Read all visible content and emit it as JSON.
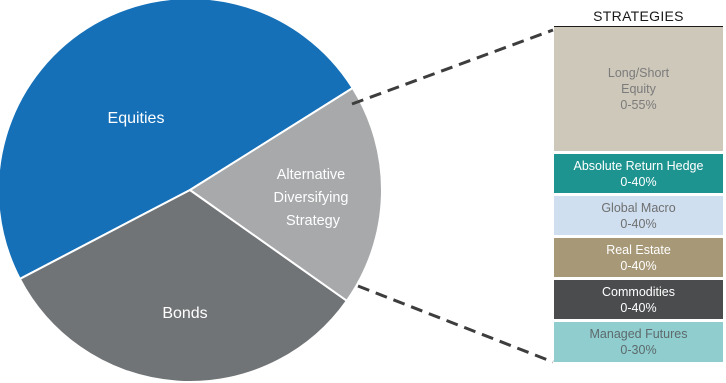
{
  "pie": {
    "slices": [
      {
        "key": "equities",
        "label": "Equities",
        "color": "#1570b8",
        "text_color": "#ffffff"
      },
      {
        "key": "alternative",
        "label_lines": [
          "Alternative",
          "Diversifying",
          "Strategy"
        ],
        "color": "#a7a9ab",
        "text_color": "#ffffff"
      },
      {
        "key": "bonds",
        "label": "Bonds",
        "color": "#717476",
        "text_color": "#ffffff"
      }
    ]
  },
  "strategies": {
    "title": "STRATEGIES",
    "items": [
      {
        "name_lines": [
          "Long/Short",
          "Equity"
        ],
        "range": "0-55%",
        "color": "#cec8bb",
        "text_color": "#7b7b7b",
        "weight": 127
      },
      {
        "name_lines": [
          "Absolute Return Hedge"
        ],
        "range": "0-40%",
        "color": "#1e9490",
        "text_color": "#ffffff",
        "weight": 42
      },
      {
        "name_lines": [
          "Global Macro"
        ],
        "range": "0-40%",
        "color": "#cfdff0",
        "text_color": "#6f6f6f",
        "weight": 42
      },
      {
        "name_lines": [
          "Real Estate"
        ],
        "range": "0-40%",
        "color": "#a79877",
        "text_color": "#ffffff",
        "weight": 42
      },
      {
        "name_lines": [
          "Commodities"
        ],
        "range": "0-40%",
        "color": "#4b4c4e",
        "text_color": "#ffffff",
        "weight": 42
      },
      {
        "name_lines": [
          "Managed Futures"
        ],
        "range": "0-30%",
        "color": "#8fcdcf",
        "text_color": "#5e6a6b",
        "weight": 40
      }
    ]
  },
  "connector": {
    "color": "#3d3d3d"
  }
}
